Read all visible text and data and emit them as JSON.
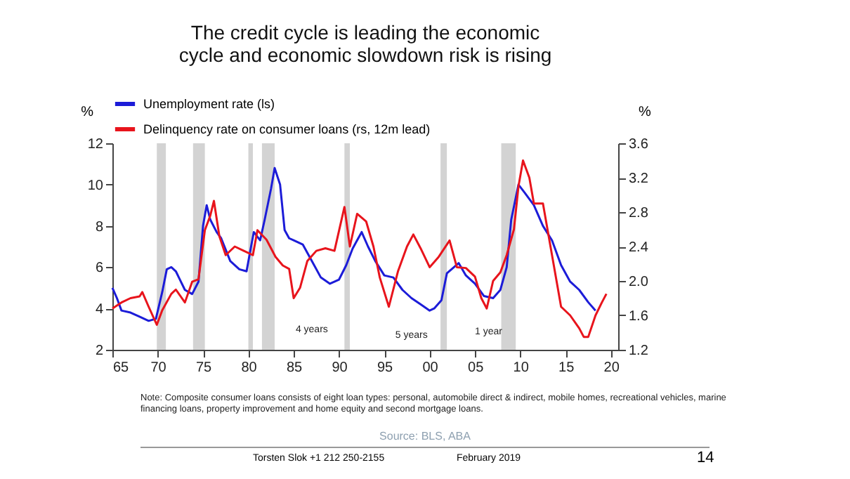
{
  "chart_data": {
    "type": "line",
    "title": "The credit cycle is leading the economic\ncycle and economic slowdown risk is rising",
    "ylabel": "%",
    "y2label": "%",
    "xlim": [
      1965,
      2020.8
    ],
    "xticks": [
      {
        "value": 1965,
        "label": "65"
      },
      {
        "value": 1970,
        "label": "70"
      },
      {
        "value": 1975,
        "label": "75"
      },
      {
        "value": 1980,
        "label": "80"
      },
      {
        "value": 1985,
        "label": "85"
      },
      {
        "value": 1990,
        "label": "90"
      },
      {
        "value": 1995,
        "label": "95"
      },
      {
        "value": 2000,
        "label": "00"
      },
      {
        "value": 2005,
        "label": "05"
      },
      {
        "value": 2010,
        "label": "10"
      },
      {
        "value": 2015,
        "label": "15"
      },
      {
        "value": 2020,
        "label": "20"
      }
    ],
    "ylim": [
      2,
      12
    ],
    "yticks": [
      2,
      4,
      6,
      8,
      10,
      12
    ],
    "y2lim": [
      1.2,
      3.6
    ],
    "y2ticks": [
      1.2,
      1.6,
      {
        "value": 2,
        "label": "2.0"
      },
      2.4,
      2.8,
      3.2,
      3.6
    ],
    "legend": "top",
    "grid": false,
    "series": [
      {
        "name": "Unemployment rate (ls)",
        "color": "#1c1cd8",
        "x": [
          1965,
          1965.5,
          1966,
          1967,
          1968,
          1969,
          1969.8,
          1970.5,
          1971,
          1971.5,
          1972,
          1973,
          1973.8,
          1974.5,
          1975,
          1975.4,
          1975.8,
          1976.5,
          1977,
          1978,
          1979,
          1979.8,
          1980.3,
          1980.6,
          1981.3,
          1981.8,
          1982.5,
          1982.9,
          1983.5,
          1984,
          1984.5,
          1985,
          1986,
          1987,
          1988,
          1989,
          1990,
          1990.8,
          1991.5,
          1992.5,
          1993.2,
          1994,
          1995,
          1996,
          1997,
          1998,
          1999,
          2000,
          2000.5,
          2001.3,
          2001.9,
          2003.2,
          2004,
          2005,
          2006,
          2007,
          2007.8,
          2008.5,
          2009,
          2009.8,
          2010.5,
          2011.5,
          2012.5,
          2013.5,
          2014.5,
          2015.5,
          2016.5,
          2017.5,
          2018.3
        ],
        "values": [
          5.0,
          4.5,
          3.9,
          3.8,
          3.6,
          3.4,
          3.5,
          4.8,
          5.9,
          6.0,
          5.8,
          4.9,
          4.7,
          5.3,
          8.0,
          9.0,
          8.3,
          7.7,
          7.4,
          6.3,
          5.9,
          5.8,
          7.0,
          7.7,
          7.3,
          8.3,
          9.8,
          10.8,
          10.0,
          7.8,
          7.4,
          7.3,
          7.1,
          6.3,
          5.5,
          5.2,
          5.4,
          6.1,
          6.9,
          7.7,
          7.0,
          6.3,
          5.6,
          5.5,
          4.9,
          4.5,
          4.2,
          3.9,
          4.0,
          4.4,
          5.7,
          6.2,
          5.6,
          5.2,
          4.6,
          4.5,
          4.9,
          6.0,
          8.3,
          10.0,
          9.6,
          9.0,
          8.0,
          7.3,
          6.1,
          5.3,
          4.9,
          4.3,
          3.9
        ]
      },
      {
        "name": "Delinquency rate on consumer loans (rs, 12m lead)",
        "color": "#e8141c",
        "axis": "y2",
        "x": [
          1965,
          1966,
          1967,
          1968,
          1968.3,
          1969,
          1969.9,
          1970.5,
          1971.5,
          1972,
          1973,
          1973.8,
          1974.5,
          1975.2,
          1975.8,
          1976.2,
          1976.8,
          1977.5,
          1978.5,
          1979.5,
          1980.5,
          1981,
          1982,
          1983,
          1983.8,
          1984.5,
          1985,
          1985.7,
          1986.5,
          1987.5,
          1988.5,
          1989.5,
          1990.6,
          1991.2,
          1992,
          1993,
          1993.8,
          1994.5,
          1995.5,
          1996.5,
          1997.5,
          1998.2,
          1999,
          2000,
          2001,
          2002.2,
          2003,
          2004,
          2005,
          2005.7,
          2006.3,
          2007,
          2007.8,
          2008.5,
          2009.3,
          2009.8,
          2010.3,
          2011,
          2011.5,
          2012.5,
          2013.5,
          2014,
          2014.5,
          2015.5,
          2016.5,
          2017,
          2017.5,
          2018.3,
          2019,
          2019.5
        ],
        "values": [
          1.68,
          1.75,
          1.8,
          1.82,
          1.87,
          1.7,
          1.49,
          1.66,
          1.85,
          1.9,
          1.75,
          1.99,
          2.02,
          2.59,
          2.76,
          2.93,
          2.52,
          2.3,
          2.4,
          2.35,
          2.3,
          2.59,
          2.48,
          2.28,
          2.18,
          2.14,
          1.8,
          1.92,
          2.23,
          2.35,
          2.38,
          2.35,
          2.86,
          2.4,
          2.78,
          2.69,
          2.4,
          2.04,
          1.7,
          2.11,
          2.4,
          2.54,
          2.38,
          2.16,
          2.28,
          2.47,
          2.16,
          2.15,
          2.05,
          1.8,
          1.68,
          2.0,
          2.1,
          2.3,
          2.6,
          3.1,
          3.4,
          3.2,
          2.9,
          2.9,
          2.3,
          2.0,
          1.7,
          1.6,
          1.45,
          1.35,
          1.35,
          1.6,
          1.75,
          1.85
        ]
      }
    ],
    "bands": [
      {
        "axis": "x",
        "from": 1969.9,
        "to": 1970.9,
        "color": "#d3d3d3"
      },
      {
        "axis": "x",
        "from": 1973.9,
        "to": 1975.2,
        "color": "#d3d3d3"
      },
      {
        "axis": "x",
        "from": 1980.0,
        "to": 1980.5,
        "color": "#d3d3d3"
      },
      {
        "axis": "x",
        "from": 1981.5,
        "to": 1982.9,
        "color": "#d3d3d3"
      },
      {
        "axis": "x",
        "from": 1990.6,
        "to": 1991.2,
        "color": "#d3d3d3"
      },
      {
        "axis": "x",
        "from": 2001.2,
        "to": 2001.9,
        "color": "#d3d3d3"
      },
      {
        "axis": "x",
        "from": 2007.9,
        "to": 2009.5,
        "color": "#d3d3d3"
      }
    ],
    "annotations": [
      "4 years",
      "5 years",
      "1 year",
      "Note: Composite consumer loans consists of eight loan types: personal, automobile direct & indirect, mobile homes, recreational vehicles, marine financing loans, property improvement and home equity and second mortgage loans.",
      "Source: BLS, ABA",
      "Torsten Slok  +1 212 250-2155",
      "February 2019",
      "14"
    ]
  }
}
